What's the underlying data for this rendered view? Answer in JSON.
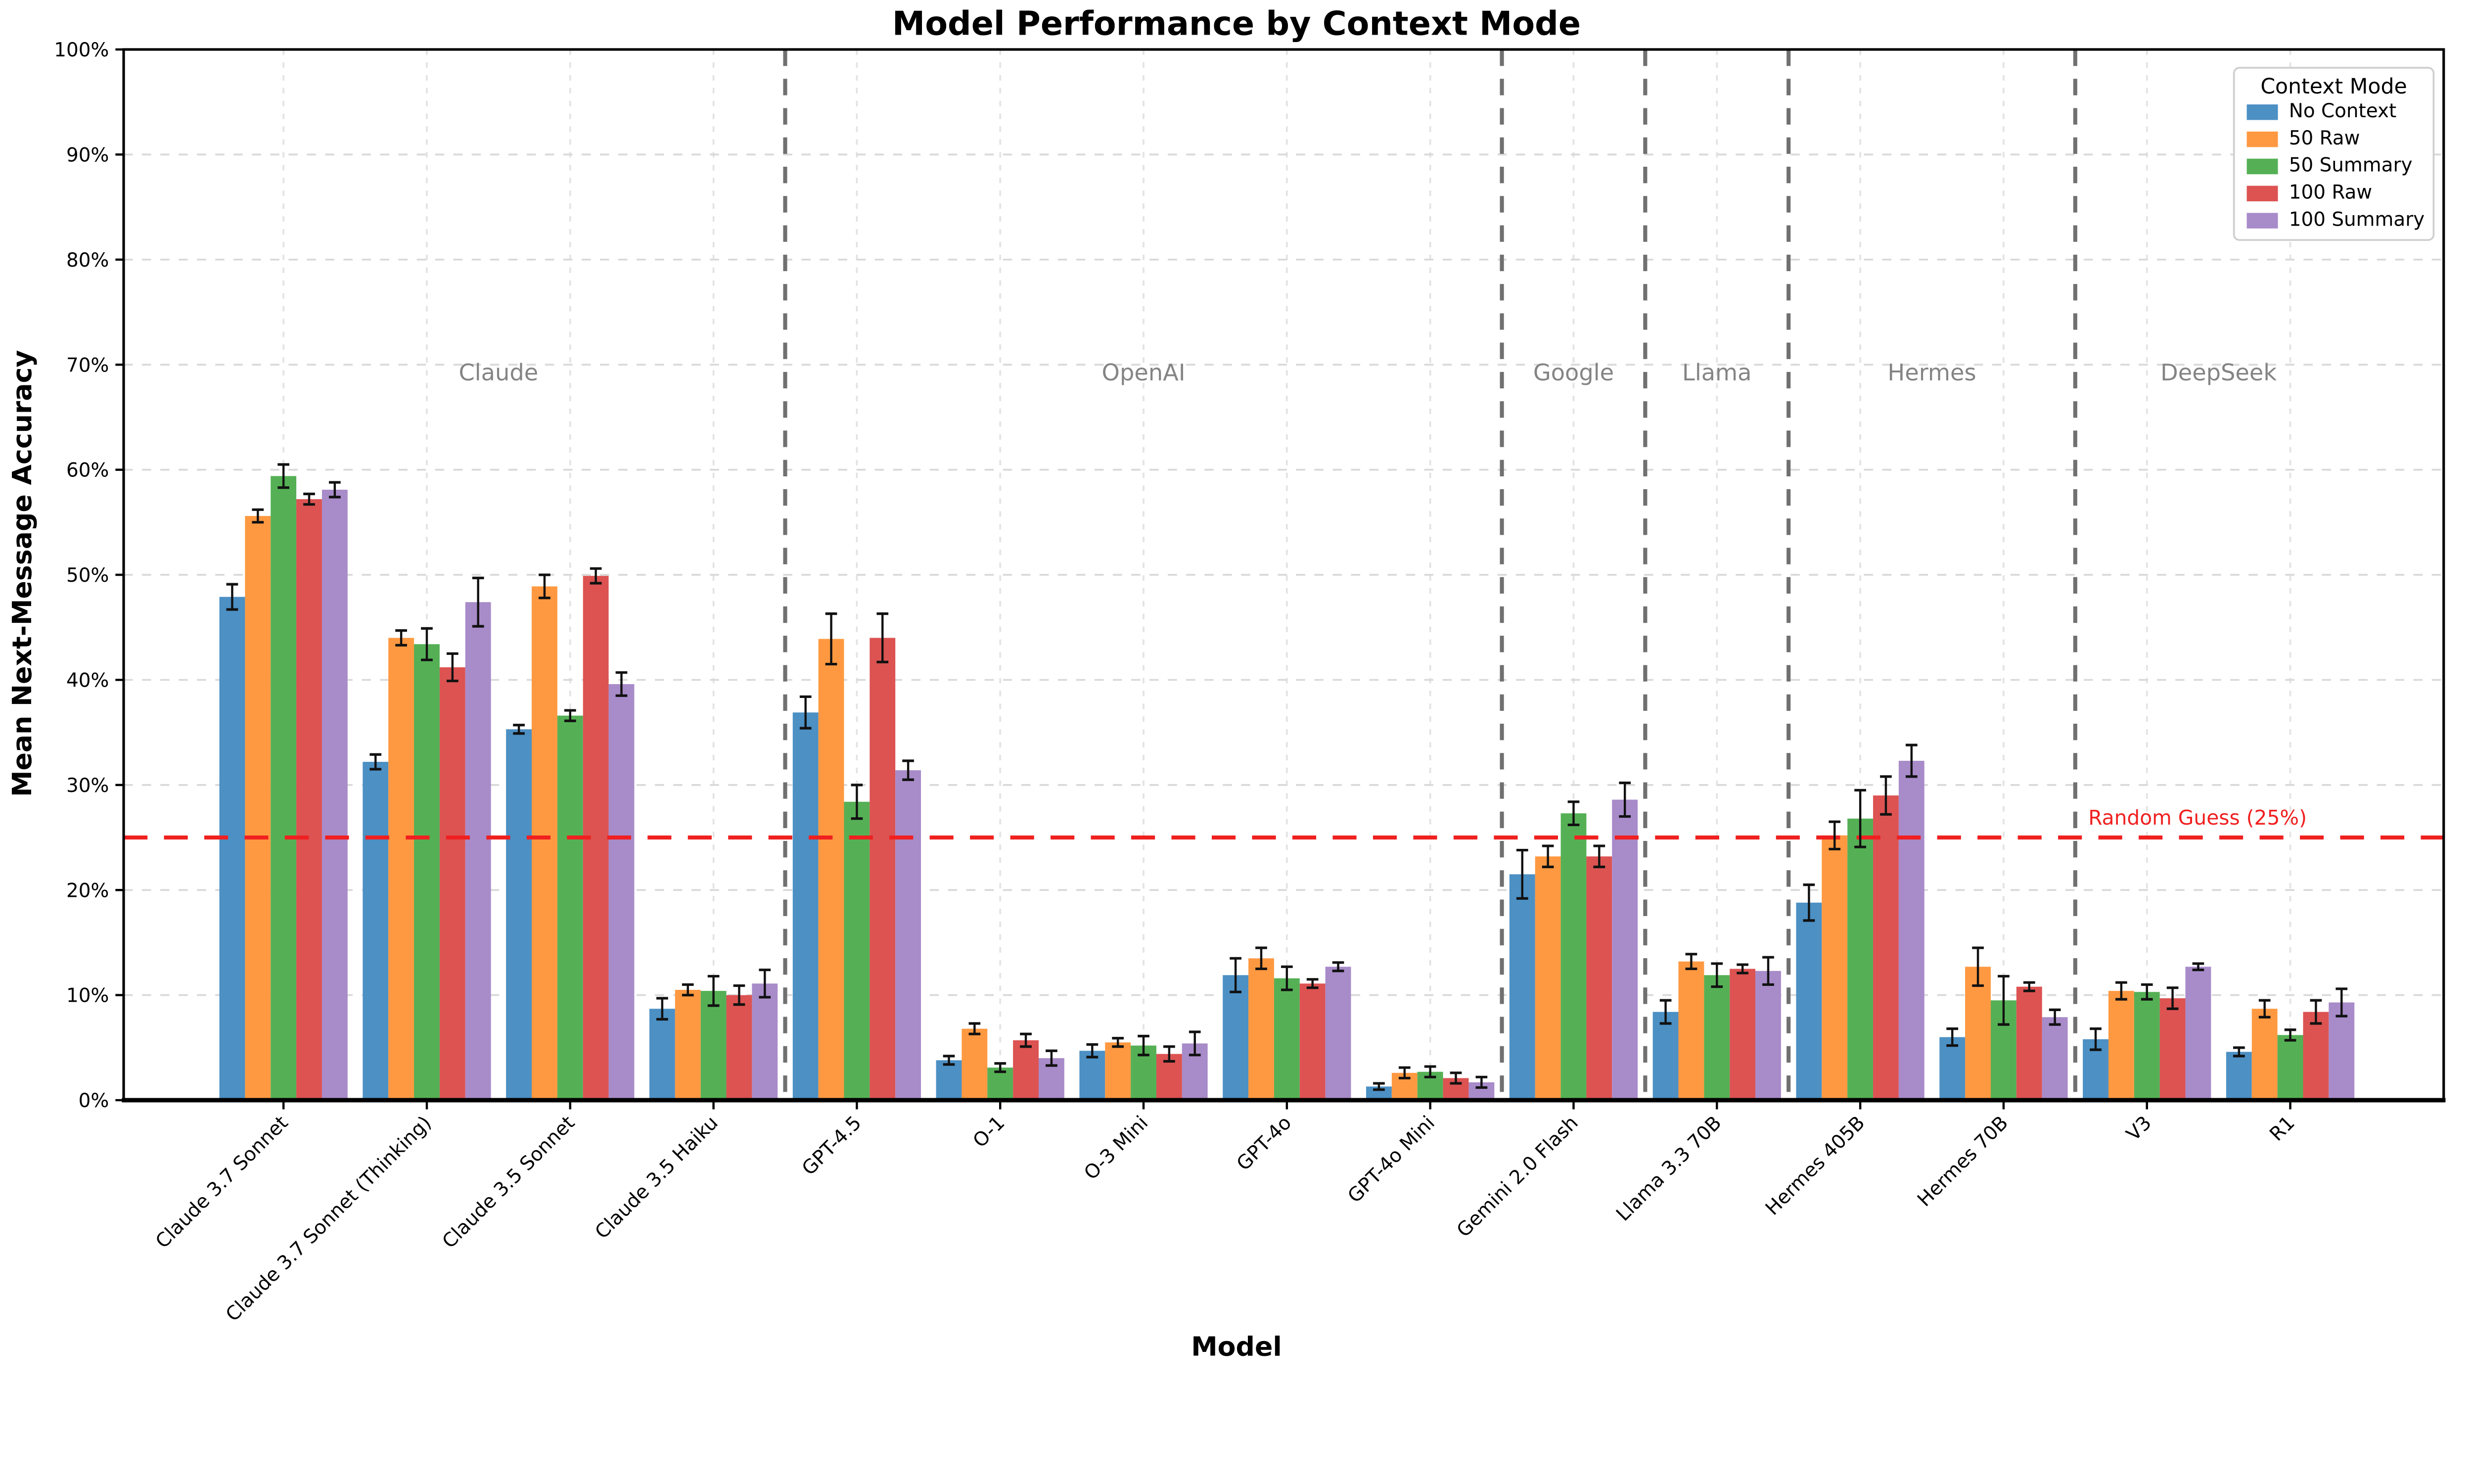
{
  "chart_data": {
    "type": "bar",
    "title": "Model Performance by Context Mode",
    "xlabel": "Model",
    "ylabel": "Mean Next-Message Accuracy",
    "ylim": [
      0,
      100
    ],
    "ytick_step": 10,
    "ytick_suffix": "%",
    "grid": true,
    "categories": [
      "Claude 3.7 Sonnet",
      "Claude 3.7 Sonnet (Thinking)",
      "Claude 3.5 Sonnet",
      "Claude 3.5 Haiku",
      "GPT-4.5",
      "O-1",
      "O-3 Mini",
      "GPT-4o",
      "GPT-4o Mini",
      "Gemini 2.0 Flash",
      "Llama 3.3 70B",
      "Hermes 405B",
      "Hermes 70B",
      "V3",
      "R1"
    ],
    "series": [
      {
        "name": "No Context",
        "color": "#4c90c4",
        "values": [
          47.9,
          32.2,
          35.3,
          8.7,
          36.9,
          3.8,
          4.7,
          11.9,
          1.3,
          21.5,
          8.4,
          18.8,
          6.0,
          5.8,
          4.6
        ],
        "errors": [
          1.2,
          0.7,
          0.4,
          1.0,
          1.5,
          0.4,
          0.6,
          1.6,
          0.3,
          2.3,
          1.1,
          1.7,
          0.8,
          1.0,
          0.4
        ]
      },
      {
        "name": "50 Raw",
        "color": "#ff9941",
        "values": [
          55.6,
          44.0,
          48.9,
          10.5,
          43.9,
          6.8,
          5.5,
          13.5,
          2.6,
          23.2,
          13.2,
          25.2,
          12.7,
          10.4,
          8.7
        ],
        "errors": [
          0.6,
          0.7,
          1.1,
          0.5,
          2.4,
          0.5,
          0.4,
          1.0,
          0.5,
          1.0,
          0.7,
          1.3,
          1.8,
          0.8,
          0.8
        ]
      },
      {
        "name": "50 Summary",
        "color": "#55b055",
        "values": [
          59.4,
          43.4,
          36.6,
          10.4,
          28.4,
          3.1,
          5.2,
          11.6,
          2.7,
          27.3,
          11.9,
          26.8,
          9.5,
          10.3,
          6.2
        ],
        "errors": [
          1.1,
          1.5,
          0.5,
          1.4,
          1.6,
          0.4,
          0.9,
          1.1,
          0.5,
          1.1,
          1.1,
          2.7,
          2.3,
          0.7,
          0.5
        ]
      },
      {
        "name": "100 Raw",
        "color": "#dc5352",
        "values": [
          57.2,
          41.2,
          49.9,
          10.0,
          44.0,
          5.7,
          4.4,
          11.1,
          2.1,
          23.2,
          12.5,
          29.0,
          10.8,
          9.7,
          8.4
        ],
        "errors": [
          0.5,
          1.3,
          0.7,
          0.9,
          2.3,
          0.6,
          0.7,
          0.4,
          0.5,
          1.0,
          0.4,
          1.8,
          0.4,
          1.0,
          1.1
        ]
      },
      {
        "name": "100 Summary",
        "color": "#a88bc9",
        "values": [
          58.1,
          47.4,
          39.6,
          11.1,
          31.4,
          4.0,
          5.4,
          12.7,
          1.7,
          28.6,
          12.3,
          32.3,
          7.9,
          12.7,
          9.3
        ],
        "errors": [
          0.7,
          2.3,
          1.1,
          1.3,
          0.9,
          0.7,
          1.1,
          0.4,
          0.5,
          1.6,
          1.3,
          1.5,
          0.7,
          0.3,
          1.3
        ]
      }
    ],
    "vendor_groups": [
      {
        "label": "Claude",
        "start": 0,
        "end": 3
      },
      {
        "label": "OpenAI",
        "start": 4,
        "end": 8
      },
      {
        "label": "Google",
        "start": 9,
        "end": 9
      },
      {
        "label": "Llama",
        "start": 10,
        "end": 10
      },
      {
        "label": "Hermes",
        "start": 11,
        "end": 12
      },
      {
        "label": "DeepSeek",
        "start": 13,
        "end": 14
      }
    ],
    "reference_line": {
      "value": 25,
      "label": "Random Guess (25%)",
      "color": "#f02020"
    },
    "legend": {
      "title": "Context Mode",
      "position": "top-right"
    },
    "colors": {
      "gridline": "#d9d9d9",
      "minor_vgrid": "#e3e3e3",
      "separator": "#707070",
      "vendor_label": "#848484",
      "error_bar": "#111111",
      "spine": "#000000"
    }
  }
}
